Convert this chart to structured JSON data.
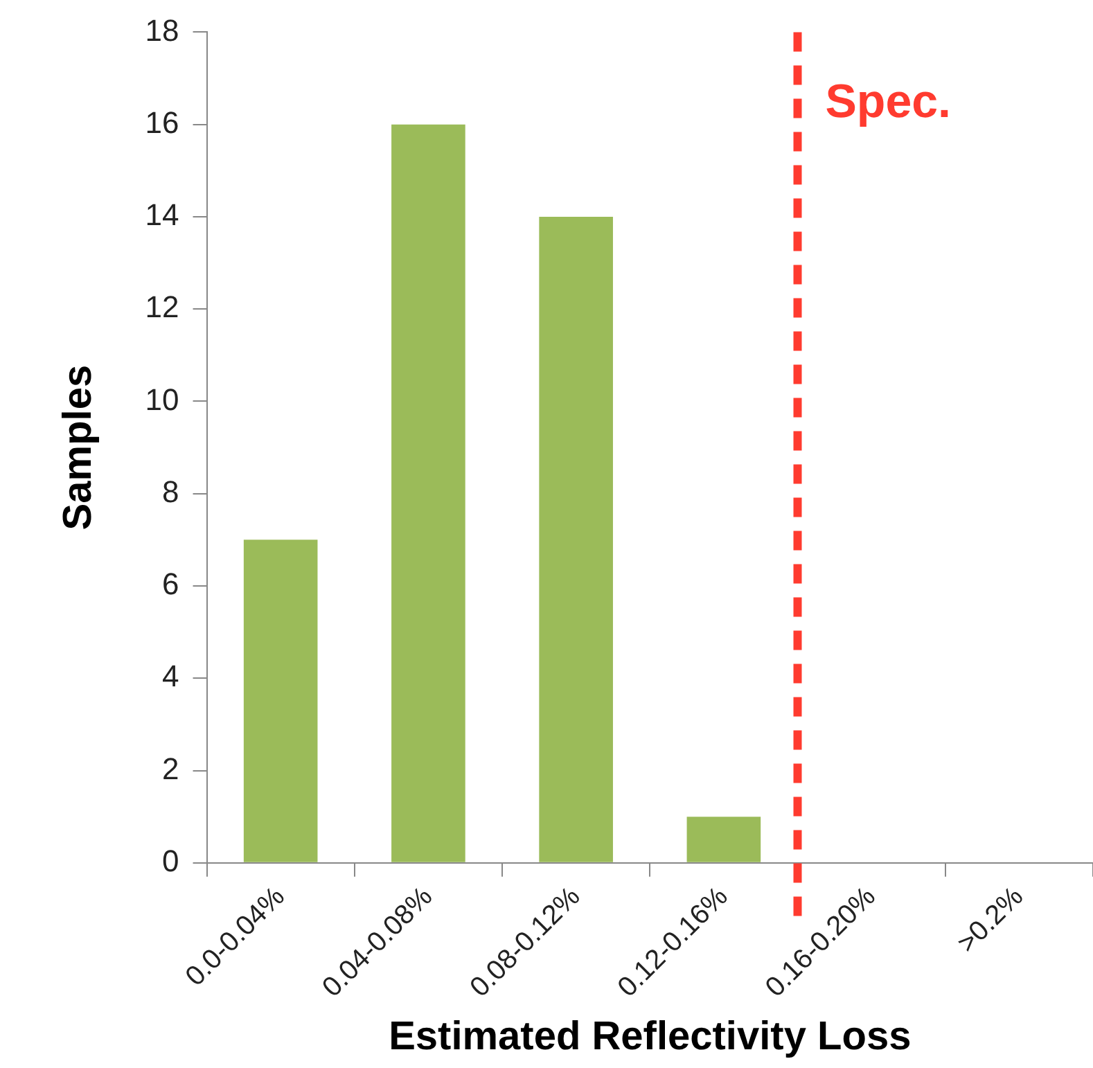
{
  "chart_data": {
    "type": "bar",
    "xlabel": "Estimated Reflectivity Loss",
    "ylabel": "Samples",
    "categories": [
      "0.0-0.04%",
      "0.04-0.08%",
      "0.08-0.12%",
      "0.12-0.16%",
      "0.16-0.20%",
      ">0.2%"
    ],
    "values": [
      7,
      16,
      14,
      1,
      0,
      0
    ],
    "color": "#9bbb59",
    "ylim": [
      0,
      18
    ],
    "yticks": [
      0,
      2,
      4,
      6,
      8,
      10,
      12,
      14,
      16,
      18
    ],
    "grid": false,
    "legend": false,
    "ref_lines": [
      {
        "axis": "x",
        "value": "0.16-0.20%",
        "label": "Spec.",
        "color": "#ff3b2f",
        "line_style": "dashed"
      }
    ]
  }
}
